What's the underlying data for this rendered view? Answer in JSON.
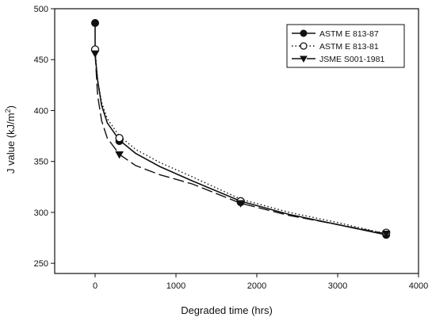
{
  "chart_data": {
    "type": "line",
    "xlabel": "Degraded time (hrs)",
    "ylabel_prefix": "J value (kJ/m",
    "ylabel_sup": "2",
    "ylabel_suffix": ")",
    "xlim": [
      -500,
      4000
    ],
    "ylim": [
      240,
      500
    ],
    "xticks": [
      0,
      1000,
      2000,
      3000,
      4000
    ],
    "yticks": [
      250,
      300,
      350,
      400,
      450,
      500
    ],
    "grid": false,
    "legend_position": "top-right",
    "series": [
      {
        "name": "ASTM E 813-87",
        "marker": "filled-circle",
        "line": "solid",
        "color": "#111111",
        "points": [
          [
            0,
            486
          ],
          [
            300,
            370
          ],
          [
            1800,
            310
          ],
          [
            3600,
            278
          ]
        ],
        "curve": [
          [
            0,
            486
          ],
          [
            0,
            455
          ],
          [
            30,
            430
          ],
          [
            80,
            405
          ],
          [
            150,
            388
          ],
          [
            300,
            371
          ],
          [
            500,
            358
          ],
          [
            800,
            345
          ],
          [
            1200,
            331
          ],
          [
            1800,
            311
          ],
          [
            2400,
            298
          ],
          [
            3000,
            288
          ],
          [
            3600,
            278
          ]
        ]
      },
      {
        "name": "ASTM E 813-81",
        "marker": "open-circle",
        "line": "dotted",
        "color": "#111111",
        "points": [
          [
            0,
            460
          ],
          [
            300,
            373
          ],
          [
            1800,
            311
          ],
          [
            3600,
            280
          ]
        ],
        "curve": [
          [
            0,
            460
          ],
          [
            30,
            430
          ],
          [
            80,
            408
          ],
          [
            150,
            392
          ],
          [
            300,
            375
          ],
          [
            500,
            362
          ],
          [
            800,
            349
          ],
          [
            1200,
            335
          ],
          [
            1800,
            313
          ],
          [
            2400,
            300
          ],
          [
            3000,
            290
          ],
          [
            3600,
            279
          ]
        ]
      },
      {
        "name": "JSME S001-1981",
        "marker": "filled-triangle-down",
        "line": "dashed",
        "color": "#111111",
        "points": [
          [
            0,
            456
          ],
          [
            300,
            357
          ],
          [
            1800,
            309
          ],
          [
            3600,
            279
          ]
        ],
        "curve": [
          [
            0,
            456
          ],
          [
            30,
            415
          ],
          [
            80,
            390
          ],
          [
            150,
            373
          ],
          [
            300,
            357
          ],
          [
            500,
            346
          ],
          [
            800,
            337
          ],
          [
            1200,
            328
          ],
          [
            1800,
            309
          ],
          [
            2400,
            297
          ],
          [
            3000,
            288
          ],
          [
            3600,
            279
          ]
        ]
      }
    ]
  }
}
